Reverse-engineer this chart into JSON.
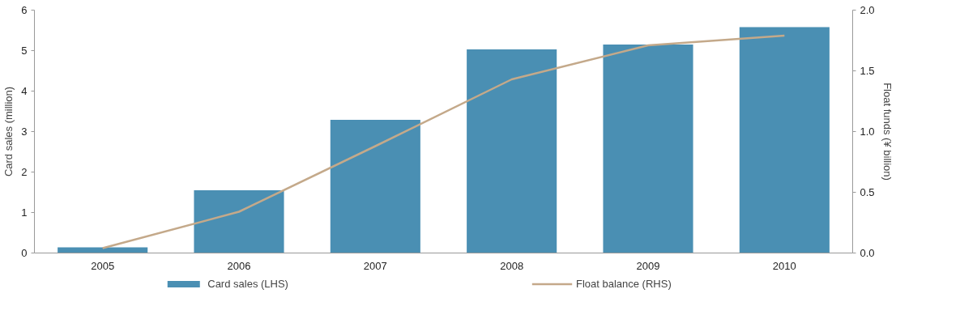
{
  "chart_data": {
    "type": "bar",
    "categories": [
      "2005",
      "2006",
      "2007",
      "2008",
      "2009",
      "2010"
    ],
    "ylabel": "Card sales (million)",
    "y2label": "Float funds (¥ billion)",
    "ylim": [
      0,
      6
    ],
    "yticks": [
      0,
      1,
      2,
      3,
      4,
      5,
      6
    ],
    "y2lim": [
      0,
      2
    ],
    "y2ticks": [
      {
        "value": 0,
        "label": "0.0"
      },
      {
        "value": 0.5,
        "label": "0.5"
      },
      {
        "value": 1,
        "label": "1.0"
      },
      {
        "value": 1.5,
        "label": "1.5"
      },
      {
        "value": 2,
        "label": "2.0"
      }
    ],
    "grid": false,
    "legend": "bottom",
    "series": [
      {
        "name": "Card sales (LHS)",
        "color": "#4a8fb3",
        "values": [
          0.14,
          1.55,
          3.29,
          5.03,
          5.15,
          5.58
        ]
      },
      {
        "name": "Float balance (RHS)",
        "type": "line",
        "axis": "y2",
        "color": "#c4a98a",
        "values": [
          0.04,
          0.34,
          0.88,
          1.43,
          1.71,
          1.79
        ]
      }
    ]
  }
}
